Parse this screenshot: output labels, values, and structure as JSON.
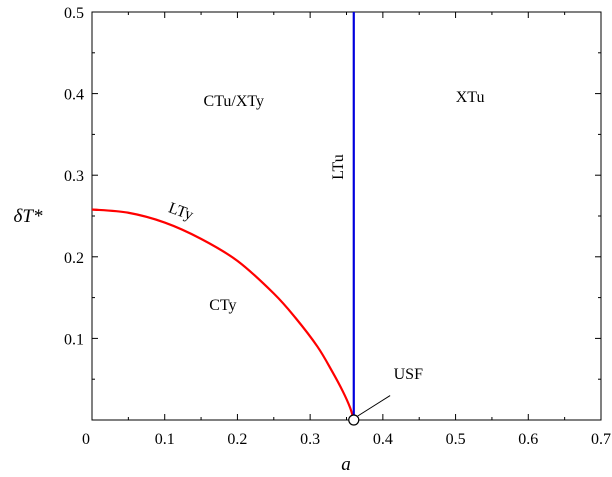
{
  "chart_data": {
    "type": "line",
    "title": "",
    "xlabel": "a",
    "ylabel": "δT*",
    "xlim": [
      0,
      0.7
    ],
    "ylim": [
      0,
      0.5
    ],
    "x_ticks": [
      0,
      0.1,
      0.2,
      0.3,
      0.4,
      0.5,
      0.6,
      0.7
    ],
    "x_tick_labels": [
      "0",
      "0.1",
      "0.2",
      "0.3",
      "0.4",
      "0.5",
      "0.6",
      "0.7"
    ],
    "y_ticks": [
      0.1,
      0.2,
      0.3,
      0.4,
      0.5
    ],
    "y_tick_labels": [
      "0.1",
      "0.2",
      "0.3",
      "0.4",
      "0.5"
    ],
    "grid": false,
    "legend": "none",
    "series": [
      {
        "name": "LTy",
        "color": "#ff0000",
        "x": [
          0.0,
          0.05,
          0.1,
          0.15,
          0.2,
          0.25,
          0.28,
          0.31,
          0.33,
          0.345,
          0.355,
          0.36
        ],
        "y": [
          0.258,
          0.254,
          0.242,
          0.222,
          0.195,
          0.155,
          0.125,
          0.09,
          0.06,
          0.035,
          0.015,
          0.0
        ]
      },
      {
        "name": "LTu",
        "color": "#0000dd",
        "x": [
          0.36,
          0.36
        ],
        "y": [
          0.0,
          0.5
        ]
      }
    ],
    "annotations": [
      {
        "text": "CTu/XTy",
        "x": 0.195,
        "y": 0.385
      },
      {
        "text": "XTu",
        "x": 0.52,
        "y": 0.39
      },
      {
        "text": "LTu",
        "x": 0.345,
        "y": 0.31,
        "rotation": -90
      },
      {
        "text": "LTy",
        "x": 0.12,
        "y": 0.25,
        "rotation": 20
      },
      {
        "text": "CTy",
        "x": 0.18,
        "y": 0.135
      },
      {
        "text": "USF",
        "x": 0.435,
        "y": 0.05
      }
    ],
    "points": [
      {
        "name": "USF",
        "x": 0.36,
        "y": 0.0
      }
    ]
  }
}
